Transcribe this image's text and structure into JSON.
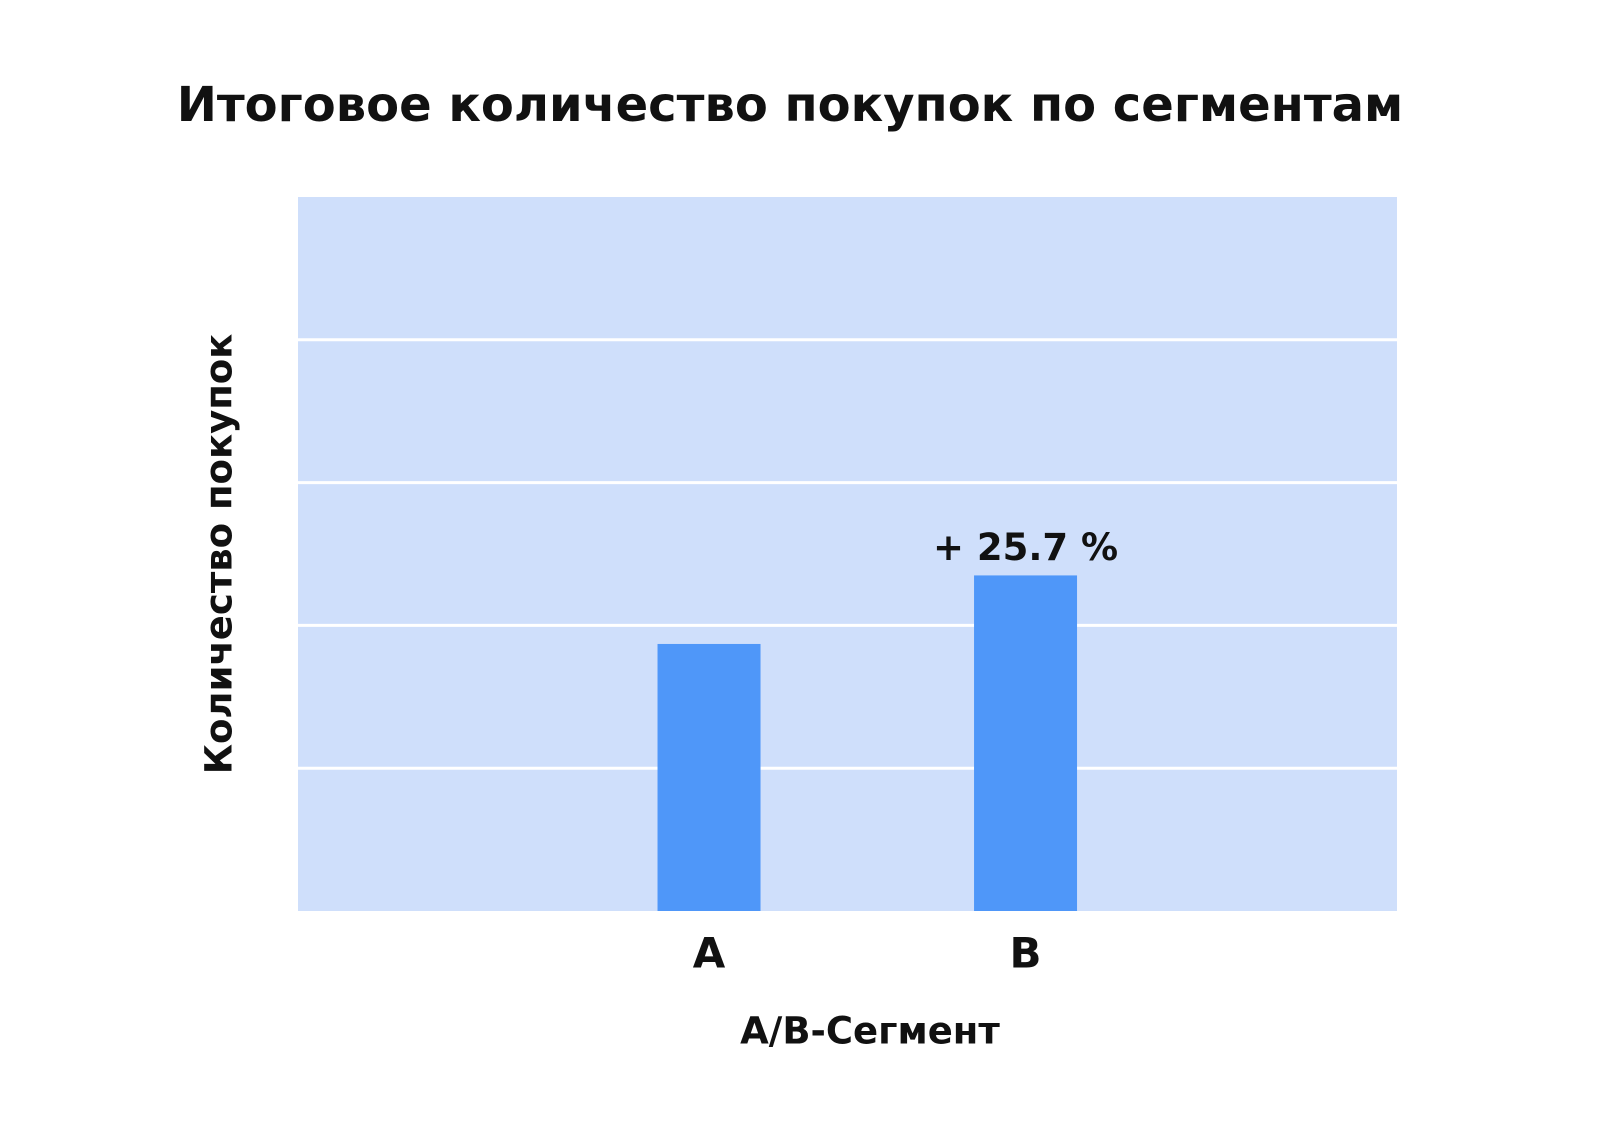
{
  "chart_data": {
    "type": "bar",
    "title": "Итоговое количество покупок по сегментам",
    "x_label": "A/B-Сегмент",
    "y_label": "Количество покупок",
    "categories": [
      "A",
      "B"
    ],
    "values": [
      1.87,
      2.35
    ],
    "color": "#4f97f9",
    "annotation": "+ 25.7 %",
    "ylim": [
      0,
      5
    ],
    "grid_lines": [
      1,
      2,
      3,
      4
    ],
    "grid": true
  }
}
